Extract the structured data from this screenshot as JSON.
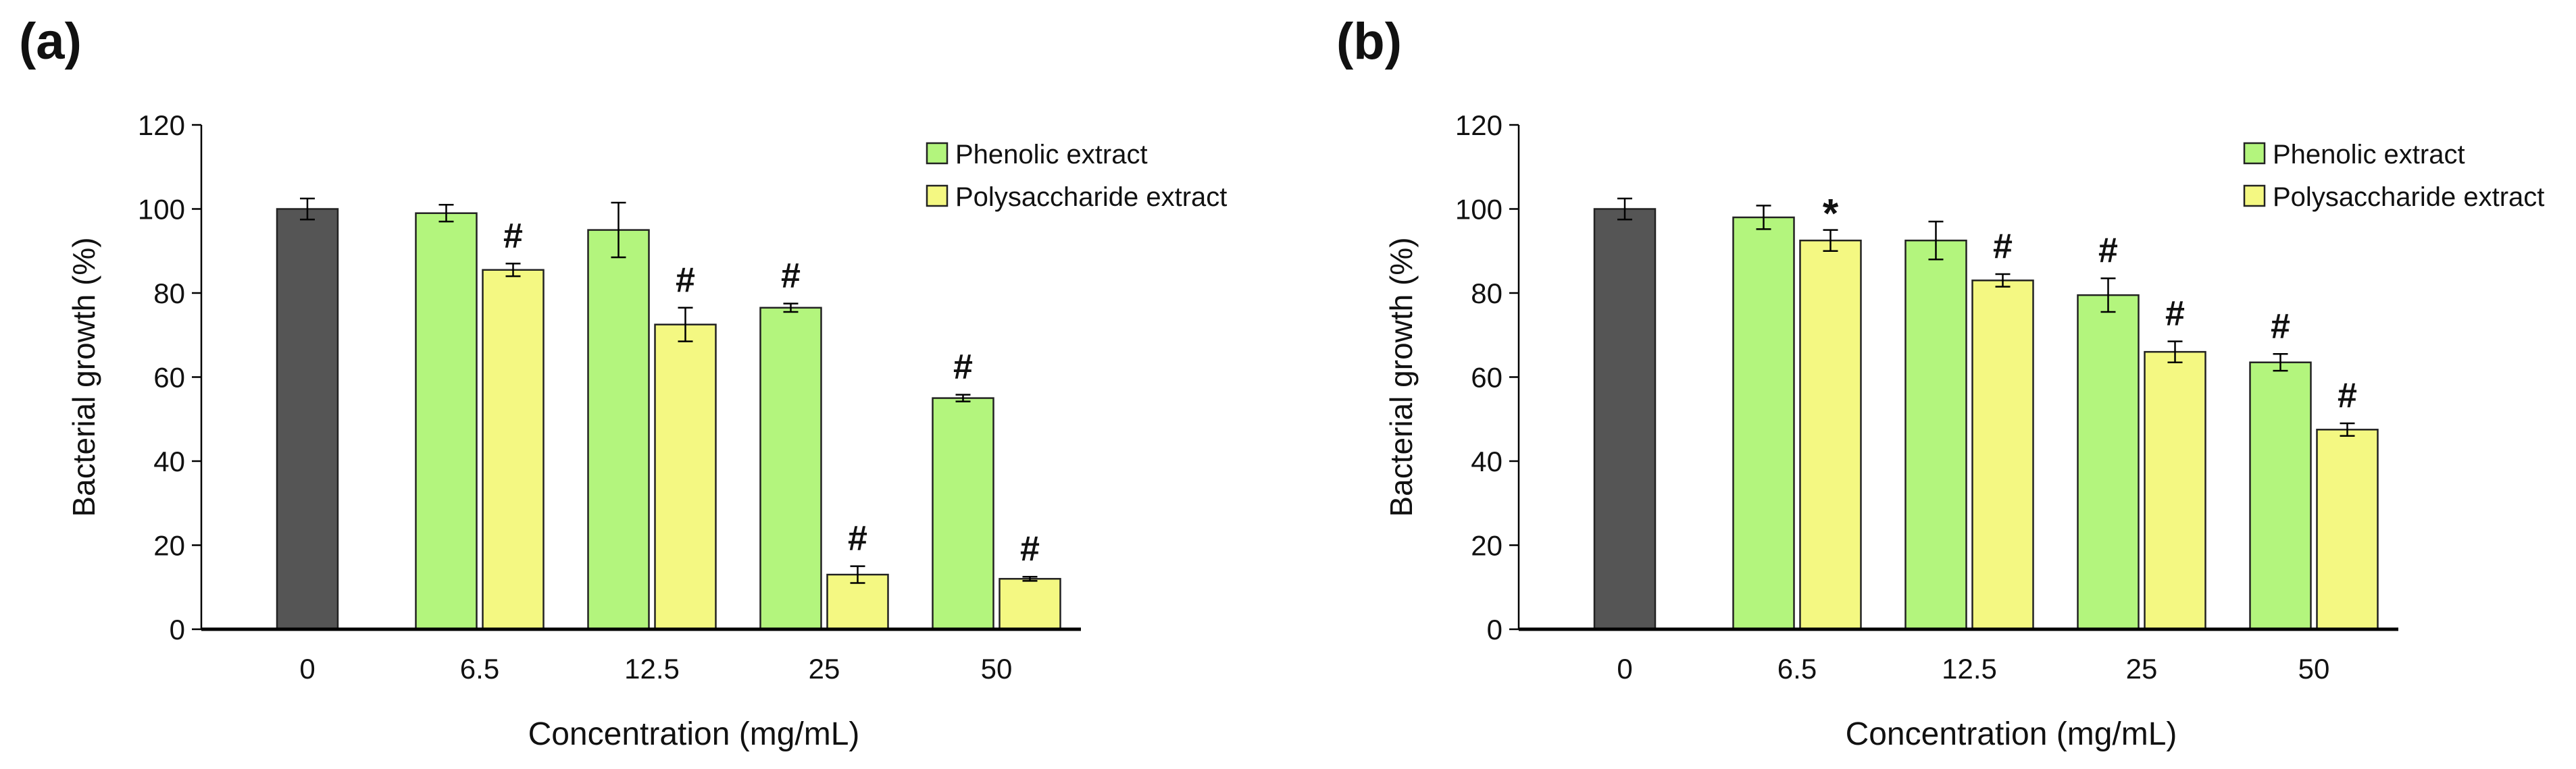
{
  "colors": {
    "control": "#555555",
    "phenolic": "#b3f57d",
    "polysaccharide": "#f4f882",
    "axis": "#000000"
  },
  "chart_data": [
    {
      "panel_label": "(a)",
      "type": "bar",
      "xlabel": "Concentration (mg/mL)",
      "ylabel": "Bacterial growth (%)",
      "ylim": [
        0,
        120
      ],
      "yticks": [
        "0",
        "20",
        "40",
        "60",
        "80",
        "100",
        "120"
      ],
      "legend_position": "top-right",
      "legend": [
        "Phenolic extract",
        "Polysaccharide extract"
      ],
      "control": {
        "category": "0",
        "value": 100,
        "error": 2.5
      },
      "categories": [
        "6.5",
        "12.5",
        "25",
        "50"
      ],
      "series": [
        {
          "name": "Phenolic extract",
          "values": [
            99,
            95,
            76.5,
            55
          ],
          "errors": [
            2,
            6.5,
            1,
            0.8
          ],
          "marks": [
            "",
            "",
            "#",
            "#"
          ]
        },
        {
          "name": "Polysaccharide extract",
          "values": [
            85.5,
            72.5,
            13,
            12
          ],
          "errors": [
            1.5,
            4,
            2,
            0.5
          ],
          "marks": [
            "#",
            "#",
            "#",
            "#"
          ]
        }
      ]
    },
    {
      "panel_label": "(b)",
      "type": "bar",
      "xlabel": "Concentration (mg/mL)",
      "ylabel": "Bacterial growth (%)",
      "ylim": [
        0,
        120
      ],
      "yticks": [
        "0",
        "20",
        "40",
        "60",
        "80",
        "100",
        "120"
      ],
      "legend_position": "top-right",
      "legend": [
        "Phenolic extract",
        "Polysaccharide extract"
      ],
      "control": {
        "category": "0",
        "value": 100,
        "error": 2.5
      },
      "categories": [
        "6.5",
        "12.5",
        "25",
        "50"
      ],
      "series": [
        {
          "name": "Phenolic extract",
          "values": [
            98,
            92.5,
            79.5,
            63.5
          ],
          "errors": [
            2.8,
            4.5,
            4,
            2
          ],
          "marks": [
            "",
            "",
            "#",
            "#"
          ]
        },
        {
          "name": "Polysaccharide extract",
          "values": [
            92.5,
            83,
            66,
            47.5
          ],
          "errors": [
            2.5,
            1.5,
            2.5,
            1.5
          ],
          "marks": [
            "*",
            "#",
            "#",
            "#"
          ]
        }
      ]
    }
  ]
}
